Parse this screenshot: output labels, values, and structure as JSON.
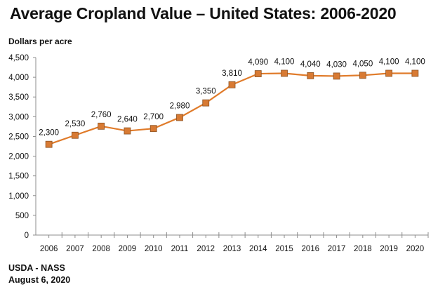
{
  "chart_data": {
    "type": "line",
    "title": "Average Cropland Value – United States: 2006-2020",
    "xlabel": "",
    "ylabel": "Dollars per acre",
    "categories": [
      "2006",
      "2007",
      "2008",
      "2009",
      "2010",
      "2011",
      "2012",
      "2013",
      "2014",
      "2015",
      "2016",
      "2017",
      "2018",
      "2019",
      "2020"
    ],
    "series": [
      {
        "name": "Average Cropland Value",
        "values": [
          2300,
          2530,
          2760,
          2640,
          2700,
          2980,
          3350,
          3810,
          4090,
          4100,
          4040,
          4030,
          4050,
          4100,
          4100
        ],
        "data_labels": [
          "2,300",
          "2,530",
          "2,760",
          "2,640",
          "2,700",
          "2,980",
          "3,350",
          "3,810",
          "4,090",
          "4,100",
          "4,040",
          "4,030",
          "4,050",
          "4,100",
          "4,100"
        ],
        "color": "#e07b2a",
        "marker": "square"
      }
    ],
    "yticks": [
      0,
      500,
      1000,
      1500,
      2000,
      2500,
      3000,
      3500,
      4000,
      4500
    ],
    "ytick_labels": [
      "0",
      "500",
      "1,000",
      "1,500",
      "2,000",
      "2,500",
      "3,000",
      "3,500",
      "4,000",
      "4,500"
    ],
    "ylim": [
      0,
      4500
    ],
    "grid": false,
    "legend": "none"
  },
  "footer": {
    "source": "USDA - NASS",
    "date": "August 6, 2020"
  }
}
